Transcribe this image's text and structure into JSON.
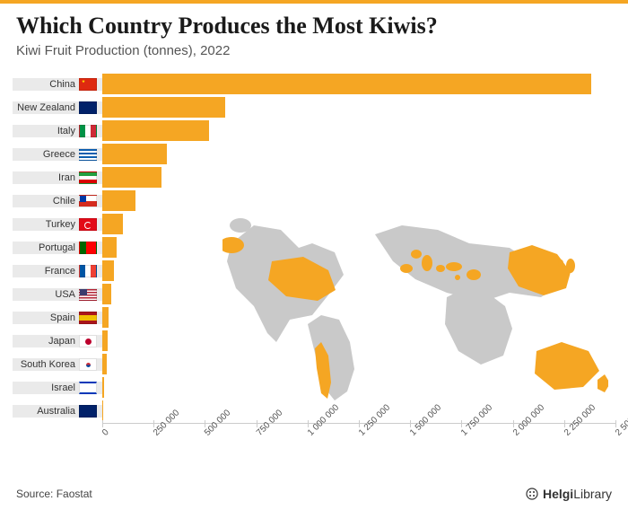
{
  "title": "Which Country Produces the Most Kiwis?",
  "subtitle": "Kiwi Fruit Production (tonnes), 2022",
  "bar_color": "#f5a623",
  "label_bg": "#eaeaea",
  "background": "#ffffff",
  "map_land": "#c9c9c9",
  "map_highlight": "#f5a623",
  "x_axis": {
    "min": 0,
    "max": 2500000,
    "step": 250000,
    "labels": [
      "0",
      "250 000",
      "500 000",
      "750 000",
      "1 000 000",
      "1 250 000",
      "1 500 000",
      "1 750 000",
      "2 000 000",
      "2 250 000",
      "2 500 000"
    ]
  },
  "countries": [
    {
      "name": "China",
      "value": 2380000,
      "flag": "China"
    },
    {
      "name": "New Zealand",
      "value": 600000,
      "flag": "NewZealand"
    },
    {
      "name": "Italy",
      "value": 520000,
      "flag": "Italy"
    },
    {
      "name": "Greece",
      "value": 315000,
      "flag": "Greece"
    },
    {
      "name": "Iran",
      "value": 290000,
      "flag": "Iran"
    },
    {
      "name": "Chile",
      "value": 160000,
      "flag": "Chile"
    },
    {
      "name": "Turkey",
      "value": 100000,
      "flag": "Turkey"
    },
    {
      "name": "Portugal",
      "value": 70000,
      "flag": "Portugal"
    },
    {
      "name": "France",
      "value": 55000,
      "flag": "France"
    },
    {
      "name": "USA",
      "value": 45000,
      "flag": "USA"
    },
    {
      "name": "Spain",
      "value": 30000,
      "flag": "Spain"
    },
    {
      "name": "Japan",
      "value": 25000,
      "flag": "Japan"
    },
    {
      "name": "South Korea",
      "value": 20000,
      "flag": "SouthKorea"
    },
    {
      "name": "Israel",
      "value": 10000,
      "flag": "Israel"
    },
    {
      "name": "Australia",
      "value": 5000,
      "flag": "Australia"
    }
  ],
  "source": "Source: Faostat",
  "logo_text": "HelgiLibrary"
}
